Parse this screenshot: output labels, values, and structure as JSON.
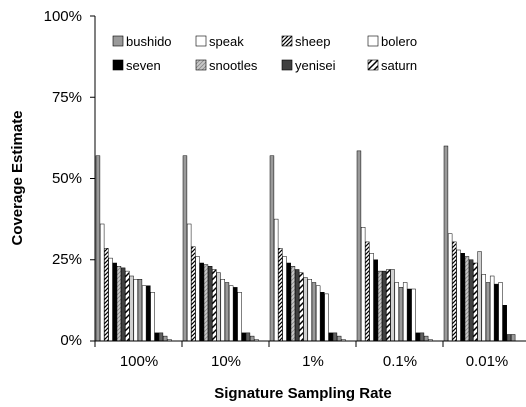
{
  "chart_data": {
    "type": "bar",
    "xlabel": "Signature Sampling Rate",
    "ylabel": "Coverage Estimate",
    "ylim": [
      0,
      100
    ],
    "yticks": [
      "0%",
      "25%",
      "50%",
      "75%",
      "100%"
    ],
    "ytick_values": [
      0,
      25,
      50,
      75,
      100
    ],
    "categories": [
      "100%",
      "10%",
      "1%",
      "0.1%",
      "0.01%"
    ],
    "legend": {
      "placement": "top-inside",
      "columns": 4
    },
    "series_meta": [
      {
        "name": "bushido",
        "fill": "#9a9a9a",
        "pattern": "solid"
      },
      {
        "name": "speak",
        "fill": "#ffffff",
        "pattern": "solid"
      },
      {
        "name": "sheep",
        "fill": "#ffffff",
        "pattern": "dense-diagonal"
      },
      {
        "name": "bolero",
        "fill": "#ffffff",
        "pattern": "solid"
      },
      {
        "name": "seven",
        "fill": "#000000",
        "pattern": "solid"
      },
      {
        "name": "snootles",
        "fill": "#c8c8c8",
        "pattern": "light-diagonal"
      },
      {
        "name": "yenisei",
        "fill": "#404040",
        "pattern": "solid"
      },
      {
        "name": "saturn",
        "fill": "#ffffff",
        "pattern": "wide-diagonal"
      }
    ],
    "group_values": [
      [
        57.0,
        36.0,
        28.5,
        25.5,
        24.0,
        23.0,
        22.5,
        21.5,
        20.0,
        19.0,
        19.0,
        17.0,
        17.0,
        15.0,
        2.5,
        2.5,
        1.5,
        0.5
      ],
      [
        57.0,
        36.0,
        29.0,
        26.0,
        24.0,
        23.5,
        23.0,
        22.0,
        21.0,
        19.0,
        18.0,
        17.0,
        16.5,
        15.0,
        2.5,
        2.5,
        1.5,
        0.5
      ],
      [
        57.0,
        37.5,
        28.5,
        26.0,
        24.0,
        23.0,
        22.0,
        21.0,
        19.5,
        19.0,
        18.0,
        17.0,
        15.0,
        14.5,
        2.5,
        2.5,
        1.5,
        0.5
      ],
      [
        58.5,
        35.0,
        30.5,
        27.0,
        25.0,
        21.5,
        21.5,
        22.0,
        22.0,
        18.0,
        16.5,
        18.0,
        16.0,
        16.0,
        2.5,
        2.5,
        1.5,
        0.5
      ],
      [
        60.0,
        33.0,
        30.5,
        28.0,
        27.0,
        26.0,
        25.0,
        24.0,
        27.5,
        20.5,
        18.0,
        20.0,
        17.5,
        18.0,
        11.0,
        2.0,
        2.0,
        0.0
      ]
    ],
    "group_fills": [
      "#9a9a9a",
      "#ffffff",
      "dense-diagonal",
      "#ffffff",
      "#000000",
      "light-diagonal",
      "#404040",
      "wide-diagonal",
      "#d0d0d0",
      "#ffffff",
      "#9a9a9a",
      "#ffffff",
      "#000000",
      "#ffffff",
      "#000000",
      "#606060",
      "#9a9a9a",
      "#ffffff"
    ]
  }
}
